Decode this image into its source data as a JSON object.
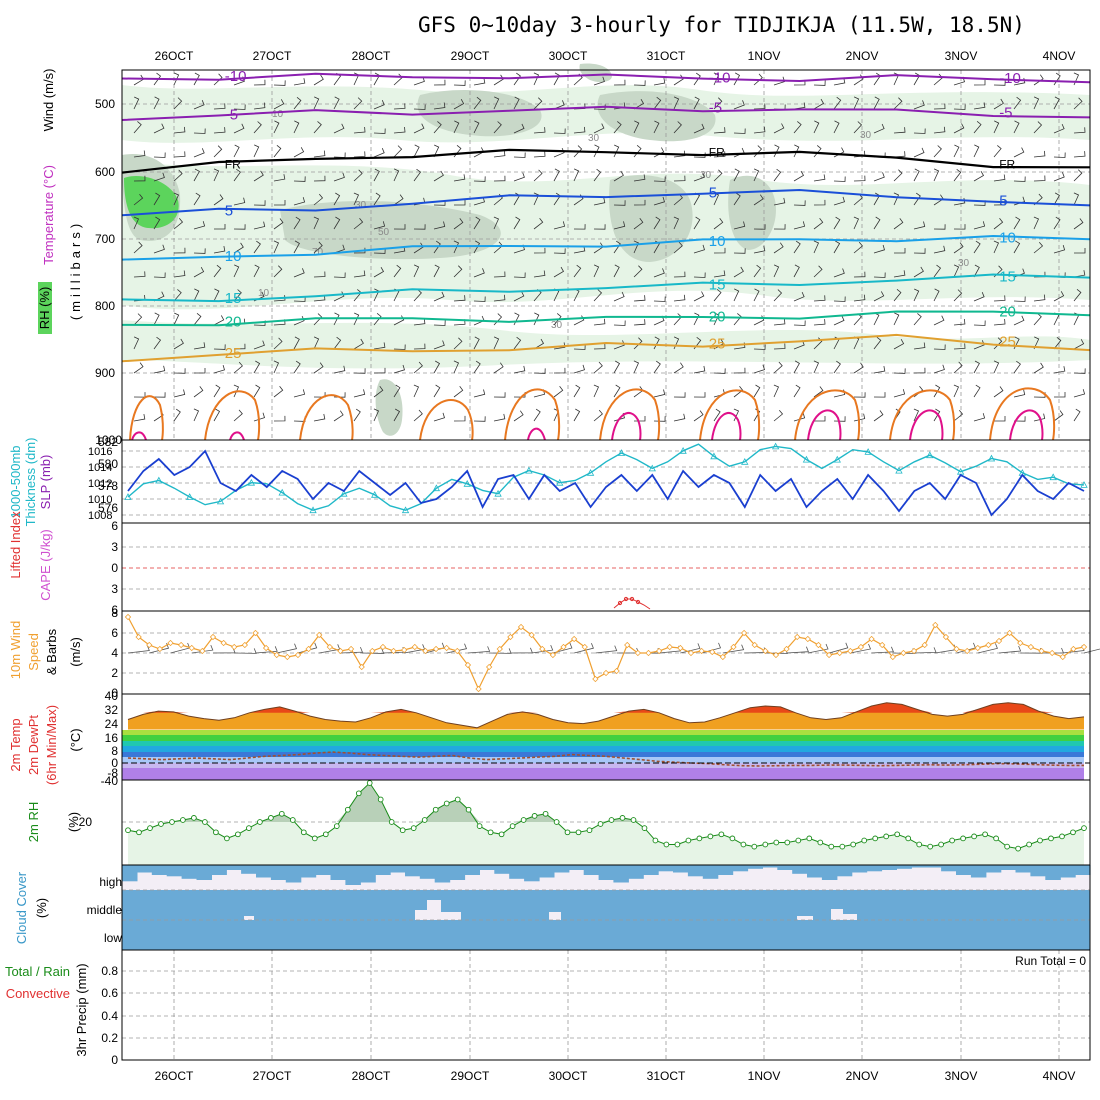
{
  "title": "GFS 0~10day 3-hourly for TIDJIKJA (11.5W, 18.5N)",
  "colors": {
    "temp_purple": "#8a1fb0",
    "temp_blue": "#1a4fd8",
    "temp_lblue": "#1aa0e8",
    "temp_cyan": "#18b8c8",
    "temp_green": "#10b890",
    "temp_gold": "#e0a030",
    "temp_orange": "#e87820",
    "temp_magenta": "#e0108a",
    "rh_light": "#e6f4e6",
    "rh_mid": "#c8d8c8",
    "rh_green": "#5cd45c",
    "slp": "#1a3fd0",
    "thick": "#20b8c8",
    "wind10": "#f0a030",
    "cloud": "#6aaad6",
    "rh2m": "#1a8c1a",
    "cape": "#d050d0",
    "li": "#e03030"
  },
  "chart_data": [
    {
      "id": "upper",
      "type": "contour",
      "ylabel_left": [
        "RH (%)",
        "Temperature (°C)",
        "Wind (m/s)"
      ],
      "ylabel_right": "(millibars)",
      "y_ticks": [
        500,
        600,
        700,
        800,
        900,
        1000
      ],
      "ylim": [
        1000,
        450
      ],
      "x_tick_labels": [
        "26OCT",
        "27OCT",
        "28OCT",
        "29OCT",
        "30OCT",
        "31OCT",
        "1NOV",
        "2NOV",
        "3NOV",
        "4NOV"
      ],
      "isotherms": [
        {
          "label": "-10",
          "values": [
            462,
            460,
            459,
            460,
            458,
            460,
            462,
            462,
            461,
            463,
            464
          ]
        },
        {
          "label": "-5",
          "values": [
            520,
            517,
            513,
            512,
            510,
            508,
            507,
            508,
            512,
            514,
            520
          ]
        },
        {
          "label": "FR",
          "values": [
            598,
            590,
            582,
            575,
            572,
            572,
            572,
            575,
            580,
            590,
            598
          ]
        },
        {
          "label": "5",
          "values": [
            665,
            660,
            655,
            648,
            640,
            635,
            633,
            632,
            635,
            645,
            655
          ]
        },
        {
          "label": "10",
          "values": [
            735,
            728,
            720,
            715,
            712,
            708,
            705,
            702,
            700,
            700,
            702
          ]
        },
        {
          "label": "15",
          "values": [
            795,
            790,
            785,
            780,
            776,
            773,
            770,
            766,
            762,
            758,
            755
          ]
        },
        {
          "label": "20",
          "values": [
            830,
            825,
            822,
            820,
            820,
            820,
            818,
            815,
            812,
            810,
            810
          ]
        },
        {
          "label": "25",
          "values": [
            880,
            872,
            868,
            865,
            865,
            860,
            858,
            852,
            848,
            855,
            865
          ]
        }
      ],
      "contour_labels": [
        "10",
        "30",
        "50",
        "70",
        "30",
        "10",
        "30",
        "30",
        "30",
        "30"
      ]
    },
    {
      "id": "slp",
      "type": "line",
      "ylabel_left": "Thickness (dm)",
      "ylabel_left2": "1000-500mb",
      "ylabel_right": "SLP (mb)",
      "y_ticks_left": [
        576,
        578,
        580,
        582
      ],
      "y_ticks_right": [
        1008,
        1010,
        1012,
        1014,
        1016
      ],
      "series": [
        {
          "name": "SLP",
          "axis": "right",
          "values": [
            1011,
            1013.5,
            1015,
            1013,
            1014,
            1016,
            1012,
            1011,
            1013,
            1011.5,
            1013.5,
            1012.5,
            1010,
            1012,
            1011,
            1013.5,
            1012,
            1010.5,
            1012,
            1009.5,
            1010,
            1011.5,
            1013.5,
            1009,
            1012.5,
            1013,
            1010,
            1013,
            1011,
            1012,
            1009,
            1011.5,
            1013,
            1011,
            1013,
            1010,
            1013.5,
            1011.5,
            1013,
            1012,
            1009,
            1013,
            1011,
            1012.5,
            1009,
            1011,
            1012.5,
            1010,
            1013,
            1011,
            1008.5,
            1011,
            1012,
            1010,
            1013,
            1012,
            1008,
            1010,
            1013,
            1011,
            1010,
            1012,
            1011
          ]
        },
        {
          "name": "Thickness",
          "axis": "left",
          "values": [
            577,
            578.2,
            578.5,
            577.8,
            577,
            576.3,
            576.6,
            577.6,
            578.3,
            578.2,
            577.4,
            576.4,
            575.8,
            576.2,
            577.3,
            577.8,
            577.2,
            576.2,
            575.8,
            576.4,
            577.8,
            578.6,
            578.2,
            577.6,
            577.3,
            578.8,
            579.4,
            579,
            578.3,
            578.5,
            579.2,
            580.2,
            581,
            580.4,
            579.6,
            580.2,
            581.2,
            581.8,
            580.7,
            579.8,
            580.2,
            581.3,
            581.6,
            581.4,
            580.4,
            579.6,
            580.4,
            581.3,
            581.1,
            580.2,
            579.4,
            580.2,
            580.8,
            580.1,
            579.3,
            579.8,
            580.5,
            580.2,
            579.2,
            578.6,
            578.8,
            578.2,
            578.1
          ]
        }
      ]
    },
    {
      "id": "cape",
      "type": "line",
      "ylabel_left": "Lifted Index",
      "ylabel_right": "CAPE (J/kg)",
      "y_ticks": [
        6,
        3,
        0,
        -3,
        -6
      ],
      "y_tick_labels": [
        "6",
        "3",
        "0",
        "3",
        "6"
      ],
      "series": [
        {
          "name": "CAPE",
          "values": [
            0,
            0,
            0,
            0,
            0,
            0,
            0,
            0,
            0,
            0
          ]
        }
      ]
    },
    {
      "id": "wind10",
      "type": "line",
      "ylabel_left": [
        "10m Wind",
        "Speed",
        "& Barbs"
      ],
      "ylabel_unit": "(m/s)",
      "y_ticks": [
        0,
        2,
        4,
        6,
        8
      ],
      "ylim": [
        0,
        8
      ],
      "series": [
        {
          "name": "10m Wind Speed",
          "values": [
            7.6,
            5.6,
            4.8,
            4.4,
            5.0,
            4.8,
            4.5,
            4.2,
            5.6,
            5.0,
            4.6,
            4.8,
            6.0,
            4.5,
            3.8,
            3.6,
            3.8,
            4.4,
            5.8,
            4.6,
            4.2,
            4.4,
            2.6,
            4.2,
            4.6,
            4.2,
            4.3,
            4.6,
            4.2,
            4.4,
            4.5,
            4.2,
            2.8,
            0.4,
            2.6,
            4.4,
            5.6,
            6.6,
            5.8,
            4.4,
            3.8,
            4.6,
            5.4,
            4.6,
            1.4,
            2.0,
            2.2,
            4.8,
            4.0,
            4.0,
            4.2,
            4.6,
            4.5,
            4.0,
            4.2,
            4.1,
            3.6,
            4.6,
            6.0,
            4.8,
            4.2,
            3.8,
            4.4,
            5.6,
            5.4,
            4.8,
            3.8,
            4.0,
            4.2,
            4.6,
            5.4,
            4.8,
            3.6,
            4.0,
            4.2,
            4.8,
            6.8,
            5.6,
            4.4,
            4.2,
            4.5,
            4.8,
            5.2,
            6.0,
            5.0,
            4.6,
            4.2,
            4.0,
            3.6,
            4.4,
            4.6
          ]
        }
      ]
    },
    {
      "id": "temp2m",
      "type": "line",
      "ylabel_left": [
        "2m Temp",
        "2m DewPt",
        "(6hr Min/Max)"
      ],
      "ylabel_unit": "(°C)",
      "y_ticks": [
        -40,
        -8,
        0,
        8,
        16,
        24,
        32,
        40
      ],
      "y_tick_labels": [
        "-40",
        "-8",
        "0",
        "8",
        "16",
        "24",
        "32",
        "40"
      ],
      "series": [
        {
          "name": "2m Temp",
          "values": [
            26,
            29,
            31,
            30.5,
            28,
            26.5,
            25.5,
            27,
            30,
            32,
            33.5,
            31,
            28,
            26,
            25,
            24.5,
            27,
            30.5,
            32,
            30,
            27,
            24,
            22.5,
            21,
            25,
            29,
            30.5,
            29,
            26,
            24,
            23.5,
            25,
            28,
            31,
            32,
            30,
            26.5,
            24,
            24.5,
            27,
            30,
            33,
            34,
            33.5,
            30,
            27,
            26,
            27,
            30.5,
            34,
            36,
            35,
            32,
            29,
            28,
            29,
            32,
            35,
            36,
            35,
            31,
            28,
            26.5,
            27.5
          ]
        },
        {
          "name": "2m DewPt",
          "values": [
            3,
            2.5,
            2,
            2.5,
            3,
            2.5,
            2,
            3,
            4,
            4.5,
            5,
            6,
            6.5,
            6,
            5,
            4.5,
            4,
            3.5,
            4,
            4.5,
            3,
            2,
            2.5,
            3,
            3.5,
            4,
            5,
            4.5,
            4,
            3,
            2,
            1,
            0.5,
            0,
            -1,
            -3,
            -4.5,
            -5,
            -4.5,
            -4,
            -4,
            -3.5,
            -3.5,
            -4,
            -4.5,
            -4,
            -3.5,
            -3,
            -3.5,
            -3,
            -2,
            -1,
            -1.5,
            -2.5,
            -3.5,
            -4,
            -4
          ]
        }
      ]
    },
    {
      "id": "rh2m",
      "type": "area",
      "ylabel_left": "2m RH",
      "ylabel_unit": "(%)",
      "y_ticks": [
        20
      ],
      "series": [
        {
          "name": "2m RH",
          "values": [
            16,
            15,
            17,
            19,
            20,
            21,
            22,
            20,
            15,
            12,
            14,
            17,
            20,
            22,
            24,
            21,
            15,
            12,
            14,
            18,
            26,
            34,
            39,
            31,
            20,
            16,
            17,
            21,
            26,
            29,
            31,
            26,
            18,
            15,
            14,
            18,
            21,
            23,
            24,
            20,
            15,
            15,
            16,
            19,
            21,
            22,
            21,
            17,
            11,
            9,
            9,
            11,
            12,
            13,
            14,
            12,
            9,
            8,
            9,
            10,
            10,
            11,
            12,
            10,
            8,
            8,
            9,
            11,
            12,
            13,
            14,
            12,
            9,
            8,
            9,
            11,
            12,
            13,
            14,
            12,
            8,
            7,
            9,
            11,
            12,
            13,
            15,
            17
          ]
        }
      ]
    },
    {
      "id": "cloud",
      "type": "bar",
      "ylabel_left": "Cloud Cover",
      "ylabel_unit": "(%)",
      "layers": [
        "high",
        "middle",
        "low"
      ],
      "series": [
        {
          "name": "high",
          "values": [
            65,
            30,
            40,
            45,
            55,
            60,
            40,
            20,
            35,
            50,
            60,
            70,
            50,
            40,
            60,
            80,
            70,
            40,
            30,
            45,
            55,
            70,
            60,
            40,
            20,
            35,
            55,
            65,
            50,
            30,
            20,
            40,
            60,
            70,
            55,
            40,
            25,
            30,
            45,
            55,
            40,
            25,
            15,
            10,
            20,
            35,
            50,
            60,
            45,
            30,
            25,
            20,
            15,
            10,
            10,
            25,
            40,
            50,
            30,
            20,
            30,
            45,
            60,
            50,
            40
          ]
        },
        {
          "name": "middle",
          "values": [
            100,
            100,
            100,
            100,
            90,
            100,
            100,
            100,
            100,
            100,
            100,
            100,
            100,
            100,
            100,
            80,
            60,
            90,
            100,
            100,
            100,
            100,
            100,
            100,
            100,
            100,
            100,
            100,
            100,
            85,
            100,
            100,
            100,
            100,
            100,
            100,
            100,
            100,
            100,
            100,
            100,
            100,
            100,
            100,
            100,
            70,
            100,
            100,
            100,
            100,
            100,
            100,
            100,
            100,
            100,
            100,
            100,
            100,
            100,
            100,
            100,
            100,
            100,
            100,
            100
          ]
        },
        {
          "name": "low",
          "values": [
            100,
            100,
            100,
            100,
            100,
            100,
            100,
            100,
            100,
            100,
            100,
            100,
            100,
            100,
            100,
            100,
            100,
            100,
            100,
            100,
            100,
            100,
            100,
            100,
            100,
            100,
            100,
            100,
            100,
            100,
            100,
            100,
            100,
            100,
            100,
            100,
            100,
            100,
            100,
            100,
            100,
            100,
            100,
            100,
            100,
            100,
            100,
            100,
            100,
            100,
            100,
            100,
            100,
            100,
            100,
            100,
            100,
            100,
            100,
            100,
            100,
            100,
            100,
            100,
            100
          ]
        }
      ]
    },
    {
      "id": "precip",
      "type": "bar",
      "ylabel_left": [
        "Total / Rain",
        "Convective"
      ],
      "ylabel_right": "3hr Precip (mm)",
      "y_ticks": [
        0,
        0.2,
        0.4,
        0.6,
        0.8
      ],
      "ylim": [
        0,
        1
      ],
      "x_tick_labels": [
        "26OCT",
        "27OCT",
        "28OCT",
        "29OCT",
        "30OCT",
        "31OCT",
        "1NOV",
        "2NOV",
        "3NOV",
        "4NOV"
      ],
      "run_total": "Run Total = 0",
      "series": [
        {
          "name": "Total",
          "values": [
            0,
            0,
            0,
            0,
            0,
            0,
            0,
            0,
            0,
            0
          ]
        }
      ]
    }
  ]
}
